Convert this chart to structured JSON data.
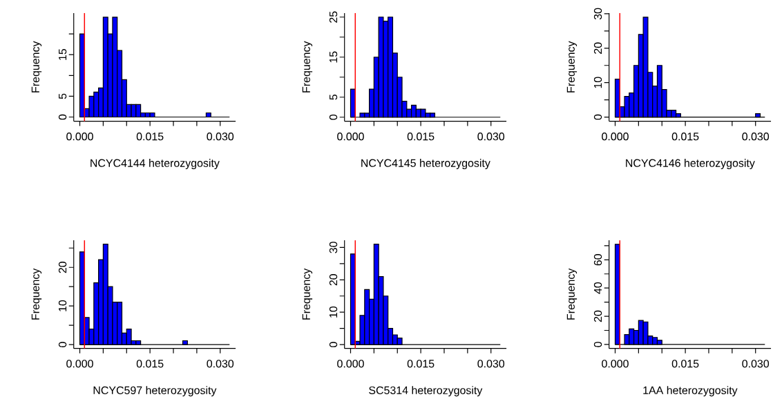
{
  "chart_data": [
    {
      "type": "histogram",
      "xlabel": "NCYC4144 heterozygosity",
      "ylabel": "Frequency",
      "color": "#0000ff",
      "bins": [
        0,
        0.001,
        0.002,
        0.003,
        0.004,
        0.005,
        0.006,
        0.007,
        0.008,
        0.009,
        0.01,
        0.011,
        0.012,
        0.013,
        0.014,
        0.015,
        0.016,
        0.017,
        0.018,
        0.019,
        0.02,
        0.021,
        0.022,
        0.023,
        0.024,
        0.025,
        0.026,
        0.027,
        0.028,
        0.029,
        0.03,
        0.031,
        0.032
      ],
      "values": [
        20,
        2,
        5,
        6,
        7,
        24,
        20,
        24,
        16,
        9,
        3,
        3,
        3,
        1,
        1,
        1,
        0,
        0,
        0,
        0,
        0,
        0,
        0,
        0,
        0,
        0,
        0,
        1,
        0,
        0,
        0,
        0
      ],
      "xlim": [
        -0.0013,
        0.0333
      ],
      "ylim": [
        -1,
        25
      ],
      "xticks": [
        {
          "value": 0,
          "label": "0.000"
        },
        {
          "value": 0.005,
          "label": null
        },
        {
          "value": 0.01,
          "label": null
        },
        {
          "value": 0.015,
          "label": "0.015"
        },
        {
          "value": 0.02,
          "label": null
        },
        {
          "value": 0.025,
          "label": null
        },
        {
          "value": 0.03,
          "label": "0.030"
        }
      ],
      "yticks": [
        0,
        5,
        {
          "value": 10,
          "label": null
        },
        15,
        {
          "value": 20,
          "label": null
        }
      ],
      "ref_lines": [
        {
          "axis": "x",
          "value": 0.001,
          "color": "#ff0000"
        }
      ]
    },
    {
      "type": "histogram",
      "xlabel": "NCYC4145 heterozygosity",
      "ylabel": "Frequency",
      "color": "#0000ff",
      "bins": [
        0,
        0.001,
        0.002,
        0.003,
        0.004,
        0.005,
        0.006,
        0.007,
        0.008,
        0.009,
        0.01,
        0.011,
        0.012,
        0.013,
        0.014,
        0.015,
        0.016,
        0.017,
        0.018,
        0.019,
        0.02,
        0.021,
        0.022,
        0.023,
        0.024,
        0.025,
        0.026,
        0.027,
        0.028,
        0.029,
        0.03,
        0.031,
        0.032
      ],
      "values": [
        7,
        0,
        1,
        1,
        7,
        15,
        25,
        24,
        25,
        16,
        10,
        4,
        2,
        3,
        2,
        2,
        1,
        1,
        0,
        0,
        0,
        0,
        0,
        0,
        0,
        0,
        0,
        0,
        0,
        0,
        0,
        0
      ],
      "xlim": [
        -0.0013,
        0.0333
      ],
      "ylim": [
        -1,
        26
      ],
      "xticks": [
        {
          "value": 0,
          "label": "0.000"
        },
        {
          "value": 0.005,
          "label": null
        },
        {
          "value": 0.01,
          "label": null
        },
        {
          "value": 0.015,
          "label": "0.015"
        },
        {
          "value": 0.02,
          "label": null
        },
        {
          "value": 0.025,
          "label": null
        },
        {
          "value": 0.03,
          "label": "0.030"
        }
      ],
      "yticks": [
        0,
        5,
        {
          "value": 10,
          "label": null
        },
        15,
        {
          "value": 20,
          "label": null
        },
        25
      ],
      "ref_lines": [
        {
          "axis": "x",
          "value": 0.001,
          "color": "#ff0000"
        }
      ]
    },
    {
      "type": "histogram",
      "xlabel": "NCYC4146 heterozygosity",
      "ylabel": "Frequency",
      "color": "#0000ff",
      "bins": [
        0,
        0.001,
        0.002,
        0.003,
        0.004,
        0.005,
        0.006,
        0.007,
        0.008,
        0.009,
        0.01,
        0.011,
        0.012,
        0.013,
        0.014,
        0.015,
        0.016,
        0.017,
        0.018,
        0.019,
        0.02,
        0.021,
        0.022,
        0.023,
        0.024,
        0.025,
        0.026,
        0.027,
        0.028,
        0.029,
        0.03,
        0.031,
        0.032
      ],
      "values": [
        11,
        3,
        6,
        7,
        15,
        24,
        29,
        13,
        9,
        15,
        8,
        2,
        2,
        1,
        0,
        0,
        0,
        0,
        0,
        0,
        0,
        0,
        0,
        0,
        0,
        0,
        0,
        0,
        0,
        0,
        1,
        0
      ],
      "xlim": [
        -0.0013,
        0.0333
      ],
      "ylim": [
        -1.2,
        30.2
      ],
      "xticks": [
        {
          "value": 0,
          "label": "0.000"
        },
        {
          "value": 0.005,
          "label": null
        },
        {
          "value": 0.01,
          "label": null
        },
        {
          "value": 0.015,
          "label": "0.015"
        },
        {
          "value": 0.02,
          "label": null
        },
        {
          "value": 0.025,
          "label": null
        },
        {
          "value": 0.03,
          "label": "0.030"
        }
      ],
      "yticks": [
        0,
        {
          "value": 5,
          "label": null
        },
        10,
        {
          "value": 15,
          "label": null
        },
        20,
        {
          "value": 25,
          "label": null
        },
        30
      ],
      "ref_lines": [
        {
          "axis": "x",
          "value": 0.001,
          "color": "#ff0000"
        }
      ]
    },
    {
      "type": "histogram",
      "xlabel": "NCYC597 heterozygosity",
      "ylabel": "Frequency",
      "color": "#0000ff",
      "bins": [
        0,
        0.001,
        0.002,
        0.003,
        0.004,
        0.005,
        0.006,
        0.007,
        0.008,
        0.009,
        0.01,
        0.011,
        0.012,
        0.013,
        0.014,
        0.015,
        0.016,
        0.017,
        0.018,
        0.019,
        0.02,
        0.021,
        0.022,
        0.023,
        0.024,
        0.025,
        0.026,
        0.027,
        0.028,
        0.029,
        0.03,
        0.031,
        0.032
      ],
      "values": [
        24,
        7,
        4,
        16,
        22,
        26,
        15,
        11,
        11,
        3,
        4,
        1,
        1,
        0,
        0,
        0,
        0,
        0,
        0,
        0,
        0,
        0,
        1,
        0,
        0,
        0,
        0,
        0,
        0,
        0,
        0,
        0
      ],
      "xlim": [
        -0.0013,
        0.0333
      ],
      "ylim": [
        -1,
        27
      ],
      "xticks": [
        {
          "value": 0,
          "label": "0.000"
        },
        {
          "value": 0.005,
          "label": null
        },
        {
          "value": 0.01,
          "label": null
        },
        {
          "value": 0.015,
          "label": "0.015"
        },
        {
          "value": 0.02,
          "label": null
        },
        {
          "value": 0.025,
          "label": null
        },
        {
          "value": 0.03,
          "label": "0.030"
        }
      ],
      "yticks": [
        0,
        {
          "value": 5,
          "label": null
        },
        10,
        {
          "value": 15,
          "label": null
        },
        20,
        {
          "value": 25,
          "label": null
        }
      ],
      "ref_lines": [
        {
          "axis": "x",
          "value": 0.001,
          "color": "#ff0000"
        }
      ]
    },
    {
      "type": "histogram",
      "xlabel": "SC5314 heterozygosity",
      "ylabel": "Frequency",
      "color": "#0000ff",
      "bins": [
        0,
        0.001,
        0.002,
        0.003,
        0.004,
        0.005,
        0.006,
        0.007,
        0.008,
        0.009,
        0.01,
        0.011,
        0.012,
        0.013,
        0.014,
        0.015,
        0.016,
        0.017,
        0.018,
        0.019,
        0.02,
        0.021,
        0.022,
        0.023,
        0.024,
        0.025,
        0.026,
        0.027,
        0.028,
        0.029,
        0.03,
        0.031,
        0.032
      ],
      "values": [
        28,
        1,
        9,
        17,
        14,
        31,
        21,
        15,
        5,
        3,
        2,
        0,
        0,
        0,
        0,
        0,
        0,
        0,
        0,
        0,
        0,
        0,
        0,
        0,
        0,
        0,
        0,
        0,
        0,
        0,
        0,
        0
      ],
      "xlim": [
        -0.0013,
        0.0333
      ],
      "ylim": [
        -1.2,
        32.2
      ],
      "xticks": [
        {
          "value": 0,
          "label": "0.000"
        },
        {
          "value": 0.005,
          "label": null
        },
        {
          "value": 0.01,
          "label": null
        },
        {
          "value": 0.015,
          "label": "0.015"
        },
        {
          "value": 0.02,
          "label": null
        },
        {
          "value": 0.025,
          "label": null
        },
        {
          "value": 0.03,
          "label": "0.030"
        }
      ],
      "yticks": [
        0,
        {
          "value": 5,
          "label": null
        },
        10,
        {
          "value": 15,
          "label": null
        },
        20,
        {
          "value": 25,
          "label": null
        },
        30
      ],
      "ref_lines": [
        {
          "axis": "x",
          "value": 0.001,
          "color": "#ff0000"
        }
      ]
    },
    {
      "type": "histogram",
      "xlabel": "1AA heterozygosity",
      "ylabel": "Frequency",
      "color": "#0000ff",
      "bins": [
        0,
        0.001,
        0.002,
        0.003,
        0.004,
        0.005,
        0.006,
        0.007,
        0.008,
        0.009,
        0.01,
        0.011,
        0.012,
        0.013,
        0.014,
        0.015,
        0.016,
        0.017,
        0.018,
        0.019,
        0.02,
        0.021,
        0.022,
        0.023,
        0.024,
        0.025,
        0.026,
        0.027,
        0.028,
        0.029,
        0.03,
        0.031,
        0.032
      ],
      "values": [
        71,
        0,
        7,
        11,
        10,
        17,
        16,
        6,
        5,
        3,
        0,
        0,
        0,
        0,
        0,
        0,
        0,
        0,
        0,
        0,
        0,
        0,
        0,
        0,
        0,
        0,
        0,
        0,
        0,
        0,
        0,
        0
      ],
      "xlim": [
        -0.0013,
        0.0333
      ],
      "ylim": [
        -2.8,
        73.8
      ],
      "xticks": [
        {
          "value": 0,
          "label": "0.000"
        },
        {
          "value": 0.005,
          "label": null
        },
        {
          "value": 0.01,
          "label": null
        },
        {
          "value": 0.015,
          "label": "0.015"
        },
        {
          "value": 0.02,
          "label": null
        },
        {
          "value": 0.025,
          "label": null
        },
        {
          "value": 0.03,
          "label": "0.030"
        }
      ],
      "yticks": [
        0,
        {
          "value": 10,
          "label": null
        },
        20,
        {
          "value": 30,
          "label": null
        },
        40,
        {
          "value": 50,
          "label": null
        },
        60,
        {
          "value": 70,
          "label": null
        }
      ],
      "ref_lines": [
        {
          "axis": "x",
          "value": 0.001,
          "color": "#ff0000"
        }
      ]
    }
  ]
}
